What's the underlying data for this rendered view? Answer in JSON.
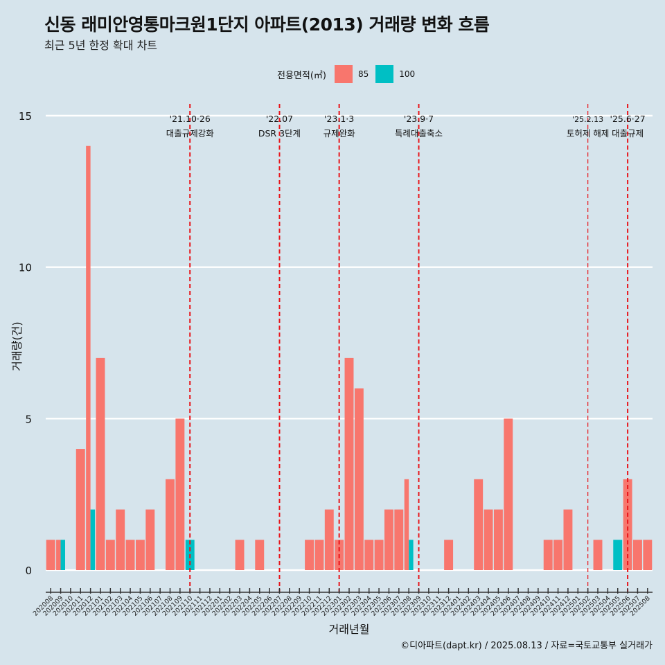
{
  "title": "신동 래미안영통마크원1단지 아파트(2013) 거래량 변화 흐름",
  "subtitle": "최근 5년 한정 확대 차트",
  "caption": "©디아파트(dapt.kr) / 2025.08.13 / 자료=국토교통부 실거래가",
  "legend": {
    "title": "전용면적(㎡)",
    "items": [
      {
        "label": "85",
        "color": "#f8766d"
      },
      {
        "label": "100",
        "color": "#00bfc4"
      }
    ]
  },
  "chart_data": {
    "type": "bar",
    "xlabel": "거래년월",
    "ylabel": "거래량(건)",
    "ylim": [
      0,
      15
    ],
    "yticks": [
      0,
      5,
      10,
      15
    ],
    "grid": true,
    "legend_position": "top",
    "categories": [
      "202008",
      "202009",
      "202010",
      "202011",
      "202012",
      "202101",
      "202102",
      "202103",
      "202104",
      "202105",
      "202106",
      "202107",
      "202108",
      "202109",
      "202110",
      "202111",
      "202112",
      "202201",
      "202202",
      "202203",
      "202204",
      "202205",
      "202206",
      "202207",
      "202208",
      "202209",
      "202210",
      "202211",
      "202212",
      "202301",
      "202302",
      "202303",
      "202304",
      "202305",
      "202306",
      "202307",
      "202308",
      "202309",
      "202310",
      "202311",
      "202312",
      "202401",
      "202402",
      "202403",
      "202404",
      "202405",
      "202406",
      "202407",
      "202408",
      "202409",
      "202410",
      "202411",
      "202412",
      "202501",
      "202502",
      "202503",
      "202504",
      "202505",
      "202506",
      "202507",
      "202508"
    ],
    "series": [
      {
        "name": "85",
        "color": "#f8766d",
        "values": [
          1,
          1,
          0,
          4,
          14,
          7,
          1,
          2,
          1,
          1,
          2,
          0,
          3,
          5,
          0,
          0,
          0,
          0,
          0,
          1,
          0,
          1,
          0,
          0,
          0,
          0,
          1,
          1,
          2,
          1,
          7,
          6,
          1,
          1,
          2,
          2,
          3,
          0,
          0,
          0,
          1,
          0,
          0,
          3,
          2,
          2,
          5,
          0,
          0,
          0,
          1,
          1,
          2,
          0,
          0,
          1,
          0,
          0,
          3,
          1,
          1
        ]
      },
      {
        "name": "100",
        "color": "#00bfc4",
        "values": [
          0,
          1,
          0,
          0,
          2,
          0,
          0,
          0,
          0,
          0,
          0,
          0,
          0,
          0,
          1,
          0,
          0,
          0,
          0,
          0,
          0,
          0,
          0,
          0,
          0,
          0,
          0,
          0,
          0,
          0,
          0,
          0,
          0,
          0,
          0,
          0,
          1,
          0,
          0,
          0,
          0,
          0,
          0,
          0,
          0,
          0,
          0,
          0,
          0,
          0,
          0,
          0,
          0,
          0,
          0,
          0,
          0,
          1,
          0,
          0,
          0
        ]
      }
    ],
    "events": [
      {
        "x": "202110",
        "date": "'21.10·26",
        "label": "대출규제강화",
        "thin": false
      },
      {
        "x": "202207",
        "date": "'22.07",
        "label": "DSR 3단계",
        "thin": false
      },
      {
        "x": "202301",
        "date": "'23.1·3",
        "label": "규제완화",
        "thin": false
      },
      {
        "x": "202309",
        "date": "'23.9·7",
        "label": "특례대출축소",
        "thin": false
      },
      {
        "x": "202502",
        "date": "'25.2.13",
        "label": "토허제 해제",
        "thin": true
      },
      {
        "x": "202506",
        "date": "'25.6·27",
        "label": "대출규제",
        "thin": false
      }
    ]
  }
}
